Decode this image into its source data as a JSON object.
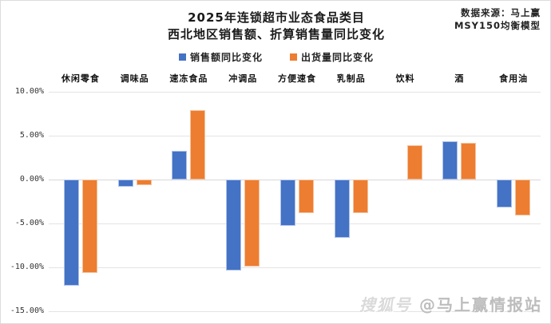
{
  "title": {
    "line1": "2025年连锁超市业态食品类目",
    "line2": "西北地区销售额、折算销售量同比变化"
  },
  "source": {
    "line1": "数据来源：马上赢",
    "line2": "MSY150均衡模型"
  },
  "legend": [
    {
      "label": "销售额同比变化",
      "color": "#4472C4"
    },
    {
      "label": "出货量同比变化",
      "color": "#ED7D31"
    }
  ],
  "watermark": {
    "prefix": "搜狐号",
    "text": "@马上赢情报站"
  },
  "chart_data": {
    "type": "bar",
    "title": "2025年连锁超市业态食品类目 西北地区销售额、折算销售量同比变化",
    "categories": [
      "休闲零食",
      "调味品",
      "速冻食品",
      "冲调品",
      "方便速食",
      "乳制品",
      "饮料",
      "酒",
      "食用油"
    ],
    "series": [
      {
        "name": "销售额同比变化",
        "color": "#4472C4",
        "values": [
          -12.1,
          -0.8,
          3.3,
          -10.4,
          -5.3,
          -6.6,
          0.0,
          4.4,
          -3.2
        ]
      },
      {
        "name": "出货量同比变化",
        "color": "#ED7D31",
        "values": [
          -10.6,
          -0.6,
          7.9,
          -9.9,
          -3.8,
          -3.8,
          3.9,
          4.2,
          -4.1
        ]
      }
    ],
    "xlabel": "",
    "ylabel": "",
    "ylim": [
      -15,
      10
    ],
    "y_tick_step": 5,
    "y_ticks": [
      "10.00%",
      "5.00%",
      "0.00%",
      "-5.00%",
      "-10.00%",
      "-15.00%"
    ],
    "grid": true,
    "legend_position": "top",
    "category_labels_position": "top"
  }
}
